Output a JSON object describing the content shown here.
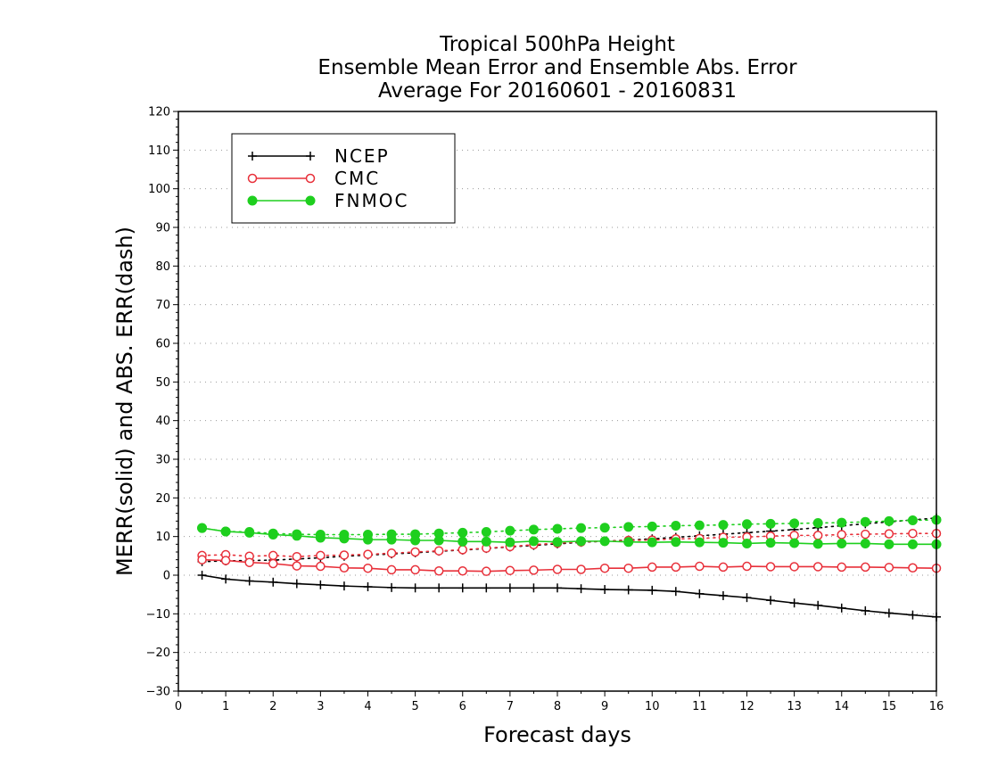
{
  "chart_data": {
    "type": "line",
    "title_lines": [
      "Tropical 500hPa Height",
      "Ensemble Mean Error and Ensemble Abs. Error",
      "Average For 20160601 - 20160831"
    ],
    "xlabel": "Forecast days",
    "ylabel": "MERR(solid) and ABS. ERR(dash)",
    "xlim": [
      0,
      16
    ],
    "ylim": [
      -30,
      120
    ],
    "xticks": [
      0,
      1,
      2,
      3,
      4,
      5,
      6,
      7,
      8,
      9,
      10,
      11,
      12,
      13,
      14,
      15,
      16
    ],
    "yticks": [
      -30,
      -20,
      -10,
      0,
      10,
      20,
      30,
      40,
      50,
      60,
      70,
      80,
      90,
      100,
      110,
      120
    ],
    "grid": "horizontal dotted",
    "legend_position": "top-left",
    "x": [
      0.5,
      1,
      1.5,
      2,
      2.5,
      3,
      3.5,
      4,
      4.5,
      5,
      5.5,
      6,
      6.5,
      7,
      7.5,
      8,
      8.5,
      9,
      9.5,
      10,
      10.5,
      11,
      11.5,
      12,
      12.5,
      13,
      13.5,
      14,
      14.5,
      15,
      15.5,
      16
    ],
    "series": [
      {
        "name": "NCEP",
        "color": "#000000",
        "marker": "plus",
        "merr": [
          0,
          -1,
          -1.5,
          -1.8,
          -2.2,
          -2.5,
          -2.8,
          -3,
          -3.2,
          -3.3,
          -3.3,
          -3.3,
          -3.3,
          -3.3,
          -3.3,
          -3.3,
          -3.5,
          -3.7,
          -3.8,
          -3.9,
          -4.2,
          -4.8,
          -5.3,
          -5.8,
          -6.5,
          -7.2,
          -7.8,
          -8.5,
          -9.2,
          -9.8,
          -10.3,
          -10.8
        ],
        "abs_err": [
          3.5,
          3.7,
          3.8,
          3.9,
          4.2,
          4.5,
          4.9,
          5.2,
          5.5,
          5.8,
          6.2,
          6.5,
          6.9,
          7.3,
          7.7,
          8.1,
          8.5,
          8.8,
          9.1,
          9.4,
          9.8,
          10.2,
          10.6,
          11,
          11.4,
          11.8,
          12.3,
          12.8,
          13.3,
          13.8,
          14.3,
          14.8
        ]
      },
      {
        "name": "CMC",
        "color": "#e8303a",
        "marker": "open-circle",
        "merr": [
          4,
          3.8,
          3.3,
          3,
          2.4,
          2.3,
          1.9,
          1.8,
          1.4,
          1.4,
          1.1,
          1.1,
          1,
          1.2,
          1.3,
          1.5,
          1.5,
          1.8,
          1.8,
          2.1,
          2.1,
          2.3,
          2.1,
          2.3,
          2.2,
          2.2,
          2.2,
          2.1,
          2.1,
          2,
          1.9,
          1.8
        ],
        "abs_err": [
          5.1,
          5.3,
          4.9,
          5.1,
          4.8,
          5.1,
          5.2,
          5.4,
          5.7,
          6,
          6.3,
          6.6,
          7,
          7.4,
          7.9,
          8.3,
          8.6,
          8.8,
          9,
          9.1,
          9.4,
          9.5,
          9.8,
          9.9,
          10.1,
          10.3,
          10.3,
          10.5,
          10.6,
          10.7,
          10.8,
          10.8
        ]
      },
      {
        "name": "FNMOC",
        "color": "#1ecf1e",
        "marker": "filled-circle",
        "merr": [
          12.2,
          11.3,
          11,
          10.5,
          10.2,
          9.7,
          9.5,
          9.2,
          9.2,
          9,
          9,
          8.7,
          8.7,
          8.5,
          8.8,
          8.6,
          8.8,
          8.8,
          8.6,
          8.5,
          8.6,
          8.5,
          8.4,
          8.2,
          8.4,
          8.3,
          8.1,
          8.2,
          8.2,
          8,
          8,
          8
        ],
        "abs_err": [
          12.2,
          11.3,
          11.2,
          10.8,
          10.6,
          10.5,
          10.5,
          10.5,
          10.6,
          10.6,
          10.8,
          11,
          11.2,
          11.5,
          11.8,
          12,
          12.2,
          12.3,
          12.5,
          12.6,
          12.8,
          12.9,
          13,
          13.2,
          13.3,
          13.4,
          13.5,
          13.6,
          13.8,
          14,
          14.2,
          14.3
        ]
      }
    ]
  }
}
